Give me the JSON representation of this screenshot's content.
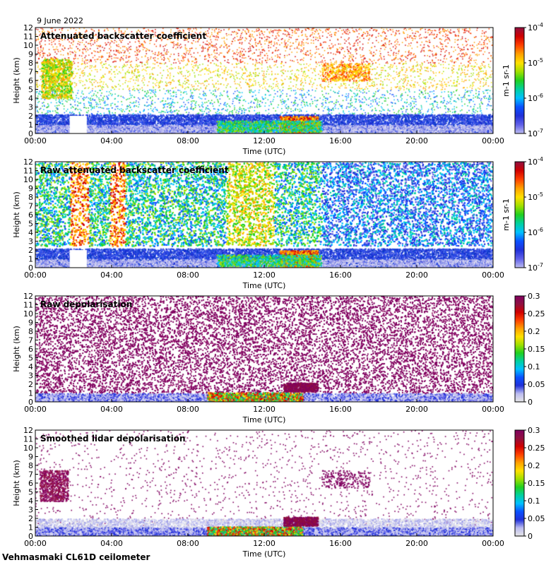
{
  "date": "9 June 2022",
  "footer": "Vehmasmaki CL61D ceilometer",
  "colors": {
    "colormap": [
      "#e6e6e6",
      "#bcbcf0",
      "#6060e8",
      "#2030d8",
      "#0a50ff",
      "#00c0ff",
      "#00d0a0",
      "#20d020",
      "#a0e000",
      "#ffe000",
      "#ffa000",
      "#ff4000",
      "#d00000",
      "#901040",
      "#800060"
    ],
    "depol_high": "#800060"
  },
  "chart_data": [
    {
      "type": "heatmap",
      "title": "Attenuated backscatter coefficient",
      "xlabel": "Time (UTC)",
      "ylabel": "Height (km)",
      "x_ticks": [
        "00:00",
        "04:00",
        "08:00",
        "12:00",
        "16:00",
        "20:00",
        "00:00"
      ],
      "xlim_hours": [
        0,
        24
      ],
      "ylim": [
        0,
        12
      ],
      "y_ticks": [
        0,
        1,
        2,
        3,
        4,
        5,
        6,
        7,
        8,
        9,
        10,
        11,
        12
      ],
      "colorbar": {
        "scale": "log",
        "range": [
          1e-07,
          0.0001
        ],
        "ticks": [
          "10-7",
          "10-6",
          "10-5",
          "10-4"
        ],
        "unit": "m-1 sr-1"
      }
    },
    {
      "type": "heatmap",
      "title": "Raw attenuated backscatter coefficient",
      "xlabel": "Time (UTC)",
      "ylabel": "Height (km)",
      "x_ticks": [
        "00:00",
        "04:00",
        "08:00",
        "12:00",
        "16:00",
        "20:00",
        "00:00"
      ],
      "xlim_hours": [
        0,
        24
      ],
      "ylim": [
        0,
        12
      ],
      "y_ticks": [
        0,
        1,
        2,
        3,
        4,
        5,
        6,
        7,
        8,
        9,
        10,
        11,
        12
      ],
      "colorbar": {
        "scale": "log",
        "range": [
          1e-07,
          0.0001
        ],
        "ticks": [
          "10-7",
          "10-6",
          "10-5",
          "10-4"
        ],
        "unit": "m-1 sr-1"
      }
    },
    {
      "type": "heatmap",
      "title": "Raw depolarisation",
      "xlabel": "Time (UTC)",
      "ylabel": "Height (km)",
      "x_ticks": [
        "00:00",
        "04:00",
        "08:00",
        "12:00",
        "16:00",
        "20:00",
        "00:00"
      ],
      "xlim_hours": [
        0,
        24
      ],
      "ylim": [
        0,
        12
      ],
      "y_ticks": [
        0,
        1,
        2,
        3,
        4,
        5,
        6,
        7,
        8,
        9,
        10,
        11,
        12
      ],
      "colorbar": {
        "scale": "linear",
        "range": [
          0,
          0.3
        ],
        "ticks": [
          "0",
          "0.05",
          "0.1",
          "0.15",
          "0.2",
          "0.25",
          "0.3"
        ],
        "unit": ""
      }
    },
    {
      "type": "heatmap",
      "title": "Smoothed lidar depolarisation",
      "xlabel": "Time (UTC)",
      "ylabel": "Height (km)",
      "x_ticks": [
        "00:00",
        "04:00",
        "08:00",
        "12:00",
        "16:00",
        "20:00",
        "00:00"
      ],
      "xlim_hours": [
        0,
        24
      ],
      "ylim": [
        0,
        12
      ],
      "y_ticks": [
        0,
        1,
        2,
        3,
        4,
        5,
        6,
        7,
        8,
        9,
        10,
        11,
        12
      ],
      "colorbar": {
        "scale": "linear",
        "range": [
          0,
          0.3
        ],
        "ticks": [
          "0",
          "0.05",
          "0.1",
          "0.15",
          "0.2",
          "0.25",
          "0.3"
        ],
        "unit": ""
      }
    }
  ]
}
